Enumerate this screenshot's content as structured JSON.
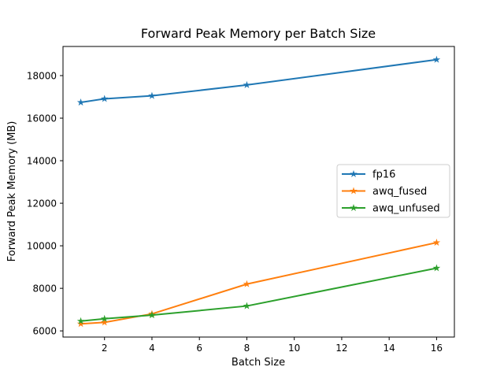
{
  "chart_data": {
    "type": "line",
    "title": "Forward Peak Memory per Batch Size",
    "xlabel": "Batch Size",
    "ylabel": "Forward Peak Memory (MB)",
    "x": [
      1,
      2,
      4,
      8,
      16
    ],
    "series": [
      {
        "name": "fp16",
        "color": "#1f77b4",
        "values": [
          16740,
          16910,
          17050,
          17560,
          18750
        ]
      },
      {
        "name": "awq_fused",
        "color": "#ff7f0e",
        "values": [
          6330,
          6400,
          6800,
          8200,
          10150
        ]
      },
      {
        "name": "awq_unfused",
        "color": "#2ca02c",
        "values": [
          6460,
          6570,
          6740,
          7170,
          8950
        ]
      }
    ],
    "xlim": [
      0.25,
      16.75
    ],
    "ylim": [
      5710,
      19370
    ],
    "xticks": [
      2,
      4,
      6,
      8,
      10,
      12,
      14,
      16
    ],
    "yticks": [
      6000,
      8000,
      10000,
      12000,
      14000,
      16000,
      18000
    ],
    "xtick_labels": [
      "2",
      "4",
      "6",
      "8",
      "10",
      "12",
      "14",
      "16"
    ],
    "ytick_labels": [
      "6000",
      "8000",
      "10000",
      "12000",
      "14000",
      "16000",
      "18000"
    ],
    "grid": false,
    "marker": "star",
    "legend": {
      "position": "center right",
      "labels": [
        "fp16",
        "awq_fused",
        "awq_unfused"
      ],
      "border_color": "#cccccc",
      "background": "#ffffff"
    },
    "spine_color": "#000000",
    "background": "#ffffff"
  }
}
